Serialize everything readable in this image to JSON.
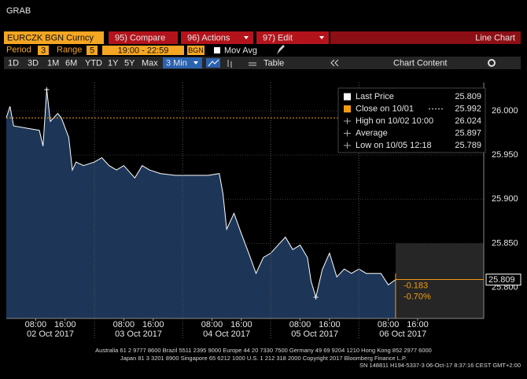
{
  "ui": {
    "title": "GRAB",
    "security": "EURCZK BGN Curncy",
    "menu": [
      "95) Compare",
      "96) Actions",
      "97) Edit"
    ],
    "view": "Line Chart",
    "period_label": "Period",
    "period": "3",
    "range_label": "Range",
    "range": "5",
    "range_time": "19:00 - 22:59",
    "currency": "BGN",
    "mov_avg": "Mov Avg",
    "periods": [
      "1D",
      "3D",
      "1M",
      "6M",
      "YTD",
      "1Y",
      "5Y",
      "Max"
    ],
    "interval": "3 Min",
    "table": "Table",
    "chart_content": "Chart Content",
    "footer": [
      "Australia 61 2 9777 8600 Brazil 5511 2395 9000 Europe 44 20 7330 7500 Germany 49 69 9204 1210 Hong Kong 852 2977 6000",
      "Japan 81 3 3201 8900        Singapore 65 6212 1000        U.S. 1 212 318 2000        Copyright 2017 Bloomberg Finance L.P.",
      "SN 148811 H194-5337-3 06-Oct-17  8:37:16 CEST GMT+2:00"
    ]
  },
  "chart_data": {
    "type": "area",
    "x": [
      "02 Oct 2017 00:00",
      "02 Oct 2017 01:00",
      "02 Oct 2017 02:00",
      "02 Oct 2017 06:00",
      "02 Oct 2017 09:00",
      "02 Oct 2017 10:00",
      "02 Oct 2017 11:00",
      "02 Oct 2017 12:00",
      "02 Oct 2017 14:00",
      "02 Oct 2017 15:00",
      "02 Oct 2017 17:00",
      "02 Oct 2017 18:00",
      "02 Oct 2017 19:00",
      "02 Oct 2017 21:00",
      "03 Oct 2017 00:00",
      "03 Oct 2017 02:00",
      "03 Oct 2017 04:00",
      "03 Oct 2017 06:00",
      "03 Oct 2017 08:00",
      "03 Oct 2017 11:00",
      "03 Oct 2017 13:00",
      "03 Oct 2017 15:00",
      "03 Oct 2017 18:00",
      "03 Oct 2017 22:00",
      "04 Oct 2017 02:00",
      "04 Oct 2017 07:00",
      "04 Oct 2017 10:00",
      "04 Oct 2017 11:00",
      "04 Oct 2017 12:00",
      "04 Oct 2017 14:00",
      "04 Oct 2017 16:00",
      "04 Oct 2017 18:00",
      "04 Oct 2017 20:00",
      "04 Oct 2017 22:00",
      "05 Oct 2017 00:00",
      "05 Oct 2017 02:00",
      "05 Oct 2017 04:00",
      "05 Oct 2017 06:00",
      "05 Oct 2017 08:00",
      "05 Oct 2017 10:00",
      "05 Oct 2017 11:00",
      "05 Oct 2017 12:18",
      "05 Oct 2017 14:00",
      "05 Oct 2017 16:00",
      "05 Oct 2017 18:00",
      "05 Oct 2017 20:00",
      "05 Oct 2017 22:00",
      "06 Oct 2017 00:00",
      "06 Oct 2017 02:00",
      "06 Oct 2017 04:00",
      "06 Oct 2017 06:00",
      "06 Oct 2017 08:00",
      "06 Oct 2017 10:00"
    ],
    "series": [
      {
        "name": "Last Price",
        "color": "#ffffff",
        "fill": "#1d3658",
        "values": [
          25.992,
          26.005,
          25.983,
          25.98,
          25.978,
          25.96,
          26.024,
          25.988,
          25.997,
          25.992,
          25.97,
          25.933,
          25.942,
          25.938,
          25.942,
          25.947,
          25.938,
          25.933,
          25.938,
          25.924,
          25.938,
          25.933,
          25.929,
          25.927,
          25.927,
          25.927,
          25.929,
          25.906,
          25.866,
          25.884,
          25.861,
          25.839,
          25.816,
          25.834,
          25.839,
          25.848,
          25.857,
          25.843,
          25.848,
          25.834,
          25.807,
          25.789,
          25.82,
          25.839,
          25.812,
          25.821,
          25.816,
          25.821,
          25.816,
          25.816,
          25.816,
          25.803,
          25.809
        ]
      }
    ],
    "xlim": [
      "02 Oct 2017 00:00",
      "07 Oct 2017 10:00"
    ],
    "xticks": [
      {
        "value": "02 Oct 2017 08:00",
        "label": "08:00"
      },
      {
        "value": "02 Oct 2017 16:00",
        "label": "16:00"
      },
      {
        "value": "03 Oct 2017 08:00",
        "label": "08:00"
      },
      {
        "value": "03 Oct 2017 16:00",
        "label": "16:00"
      },
      {
        "value": "04 Oct 2017 08:00",
        "label": "08:00"
      },
      {
        "value": "04 Oct 2017 16:00",
        "label": "16:00"
      },
      {
        "value": "05 Oct 2017 08:00",
        "label": "08:00"
      },
      {
        "value": "05 Oct 2017 16:00",
        "label": "16:00"
      },
      {
        "value": "06 Oct 2017 08:00",
        "label": "08:00"
      },
      {
        "value": "06 Oct 2017 16:00",
        "label": "16:00"
      }
    ],
    "xdays": [
      {
        "value": "02 Oct 2017 00:00",
        "label": "02 Oct 2017"
      },
      {
        "value": "03 Oct 2017 00:00",
        "label": "03 Oct 2017"
      },
      {
        "value": "04 Oct 2017 00:00",
        "label": "04 Oct 2017"
      },
      {
        "value": "05 Oct 2017 00:00",
        "label": "05 Oct 2017"
      },
      {
        "value": "06 Oct 2017 00:00",
        "label": "06 Oct 2017"
      }
    ],
    "ylim": [
      25.765,
      26.032
    ],
    "yticks": [
      {
        "value": 25.8,
        "label": "25.800"
      },
      {
        "value": 25.85,
        "label": "25.850"
      },
      {
        "value": 25.9,
        "label": "25.900"
      },
      {
        "value": 25.95,
        "label": "25.950"
      },
      {
        "value": 26,
        "label": "26.000"
      }
    ],
    "legend": [
      {
        "label": "Last Price",
        "value": 25.809,
        "color": "#ffffff"
      },
      {
        "label": "Close on 10/01",
        "value": 25.992,
        "color": "#f39c12"
      },
      {
        "label": "High on 10/02 10:00",
        "value": 26.024
      },
      {
        "label": "Average",
        "value": 25.897
      },
      {
        "label": "Low on 10/05 12:18",
        "value": 25.789
      }
    ],
    "change": -0.183,
    "change_pct": {
      "value": -0.7,
      "label": "-0.70%"
    },
    "change_color": "#f39c12"
  }
}
